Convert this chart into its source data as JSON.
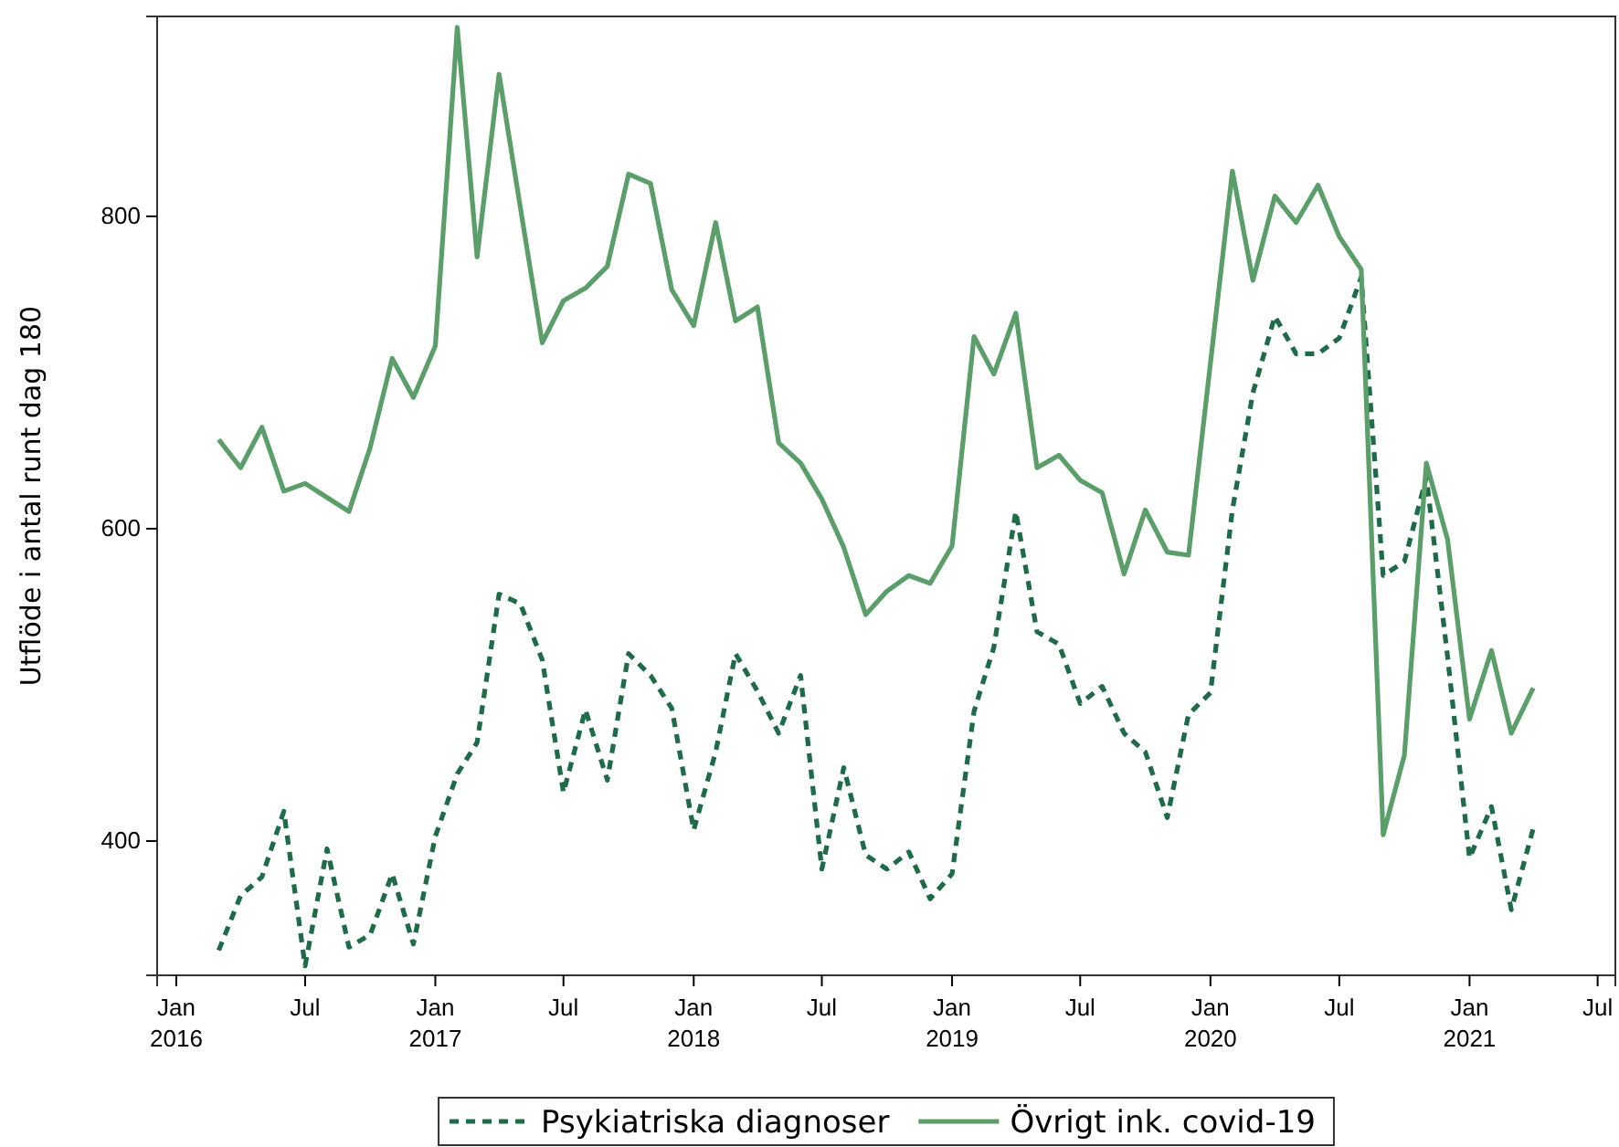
{
  "chart_data": {
    "type": "line",
    "ylabel": "Utflöde i antal runt dag 180",
    "x": [
      "2016-03",
      "2016-04",
      "2016-05",
      "2016-06",
      "2016-07",
      "2016-08",
      "2016-09",
      "2016-10",
      "2016-11",
      "2016-12",
      "2017-01",
      "2017-02",
      "2017-03",
      "2017-04",
      "2017-05",
      "2017-06",
      "2017-07",
      "2017-08",
      "2017-09",
      "2017-10",
      "2017-11",
      "2017-12",
      "2018-01",
      "2018-02",
      "2018-03",
      "2018-04",
      "2018-05",
      "2018-06",
      "2018-07",
      "2018-08",
      "2018-09",
      "2018-10",
      "2018-11",
      "2018-12",
      "2019-01",
      "2019-02",
      "2019-03",
      "2019-04",
      "2019-05",
      "2019-06",
      "2019-07",
      "2019-08",
      "2019-09",
      "2019-10",
      "2019-11",
      "2019-12",
      "2020-01",
      "2020-02",
      "2020-03",
      "2020-04",
      "2020-05",
      "2020-06",
      "2020-07",
      "2020-08",
      "2020-09",
      "2020-10",
      "2020-11",
      "2020-12",
      "2021-01",
      "2021-02",
      "2021-03",
      "2021-04"
    ],
    "series": [
      {
        "name": "Psykiatriska diagnoser",
        "color": "#1e6b4a",
        "line_style": "dashed",
        "values": [
          330,
          365,
          377,
          419,
          320,
          395,
          332,
          340,
          379,
          334,
          403,
          443,
          463,
          558,
          552,
          516,
          431,
          484,
          439,
          520,
          506,
          485,
          407,
          457,
          520,
          496,
          469,
          506,
          382,
          447,
          391,
          382,
          393,
          363,
          379,
          483,
          524,
          611,
          534,
          526,
          488,
          499,
          469,
          457,
          415,
          481,
          495,
          612,
          687,
          736,
          712,
          712,
          722,
          761,
          570,
          579,
          633,
          518,
          389,
          422,
          356,
          408
        ]
      },
      {
        "name": "Övrigt ink. covid-19",
        "color": "#5a9e6a",
        "line_style": "solid",
        "values": [
          657,
          639,
          665,
          624,
          629,
          620,
          611,
          652,
          709,
          684,
          717,
          921,
          774,
          891,
          806,
          719,
          746,
          754,
          768,
          827,
          821,
          753,
          730,
          796,
          733,
          742,
          655,
          642,
          619,
          588,
          545,
          560,
          570,
          565,
          589,
          723,
          699,
          738,
          639,
          647,
          631,
          623,
          571,
          612,
          585,
          583,
          706,
          829,
          759,
          813,
          796,
          820,
          787,
          766,
          404,
          455,
          642,
          593,
          478,
          522,
          469,
          498
        ]
      }
    ],
    "xlim": [
      "2015-12-05",
      "2021-07-26"
    ],
    "xticks": [
      {
        "value": "2016-01",
        "label": "Jan 2016"
      },
      {
        "value": "2016-07",
        "label": "Jul"
      },
      {
        "value": "2017-01",
        "label": "Jan 2017"
      },
      {
        "value": "2017-07",
        "label": "Jul"
      },
      {
        "value": "2018-01",
        "label": "Jan 2018"
      },
      {
        "value": "2018-07",
        "label": "Jul"
      },
      {
        "value": "2019-01",
        "label": "Jan 2019"
      },
      {
        "value": "2019-07",
        "label": "Jul"
      },
      {
        "value": "2020-01",
        "label": "Jan 2020"
      },
      {
        "value": "2020-07",
        "label": "Jul"
      },
      {
        "value": "2021-01",
        "label": "Jan 2021"
      },
      {
        "value": "2021-07",
        "label": "Jul"
      }
    ],
    "ylim": [
      314,
      928
    ],
    "yticks": [
      400,
      600,
      800
    ],
    "legend": "bottom",
    "grid": false
  }
}
